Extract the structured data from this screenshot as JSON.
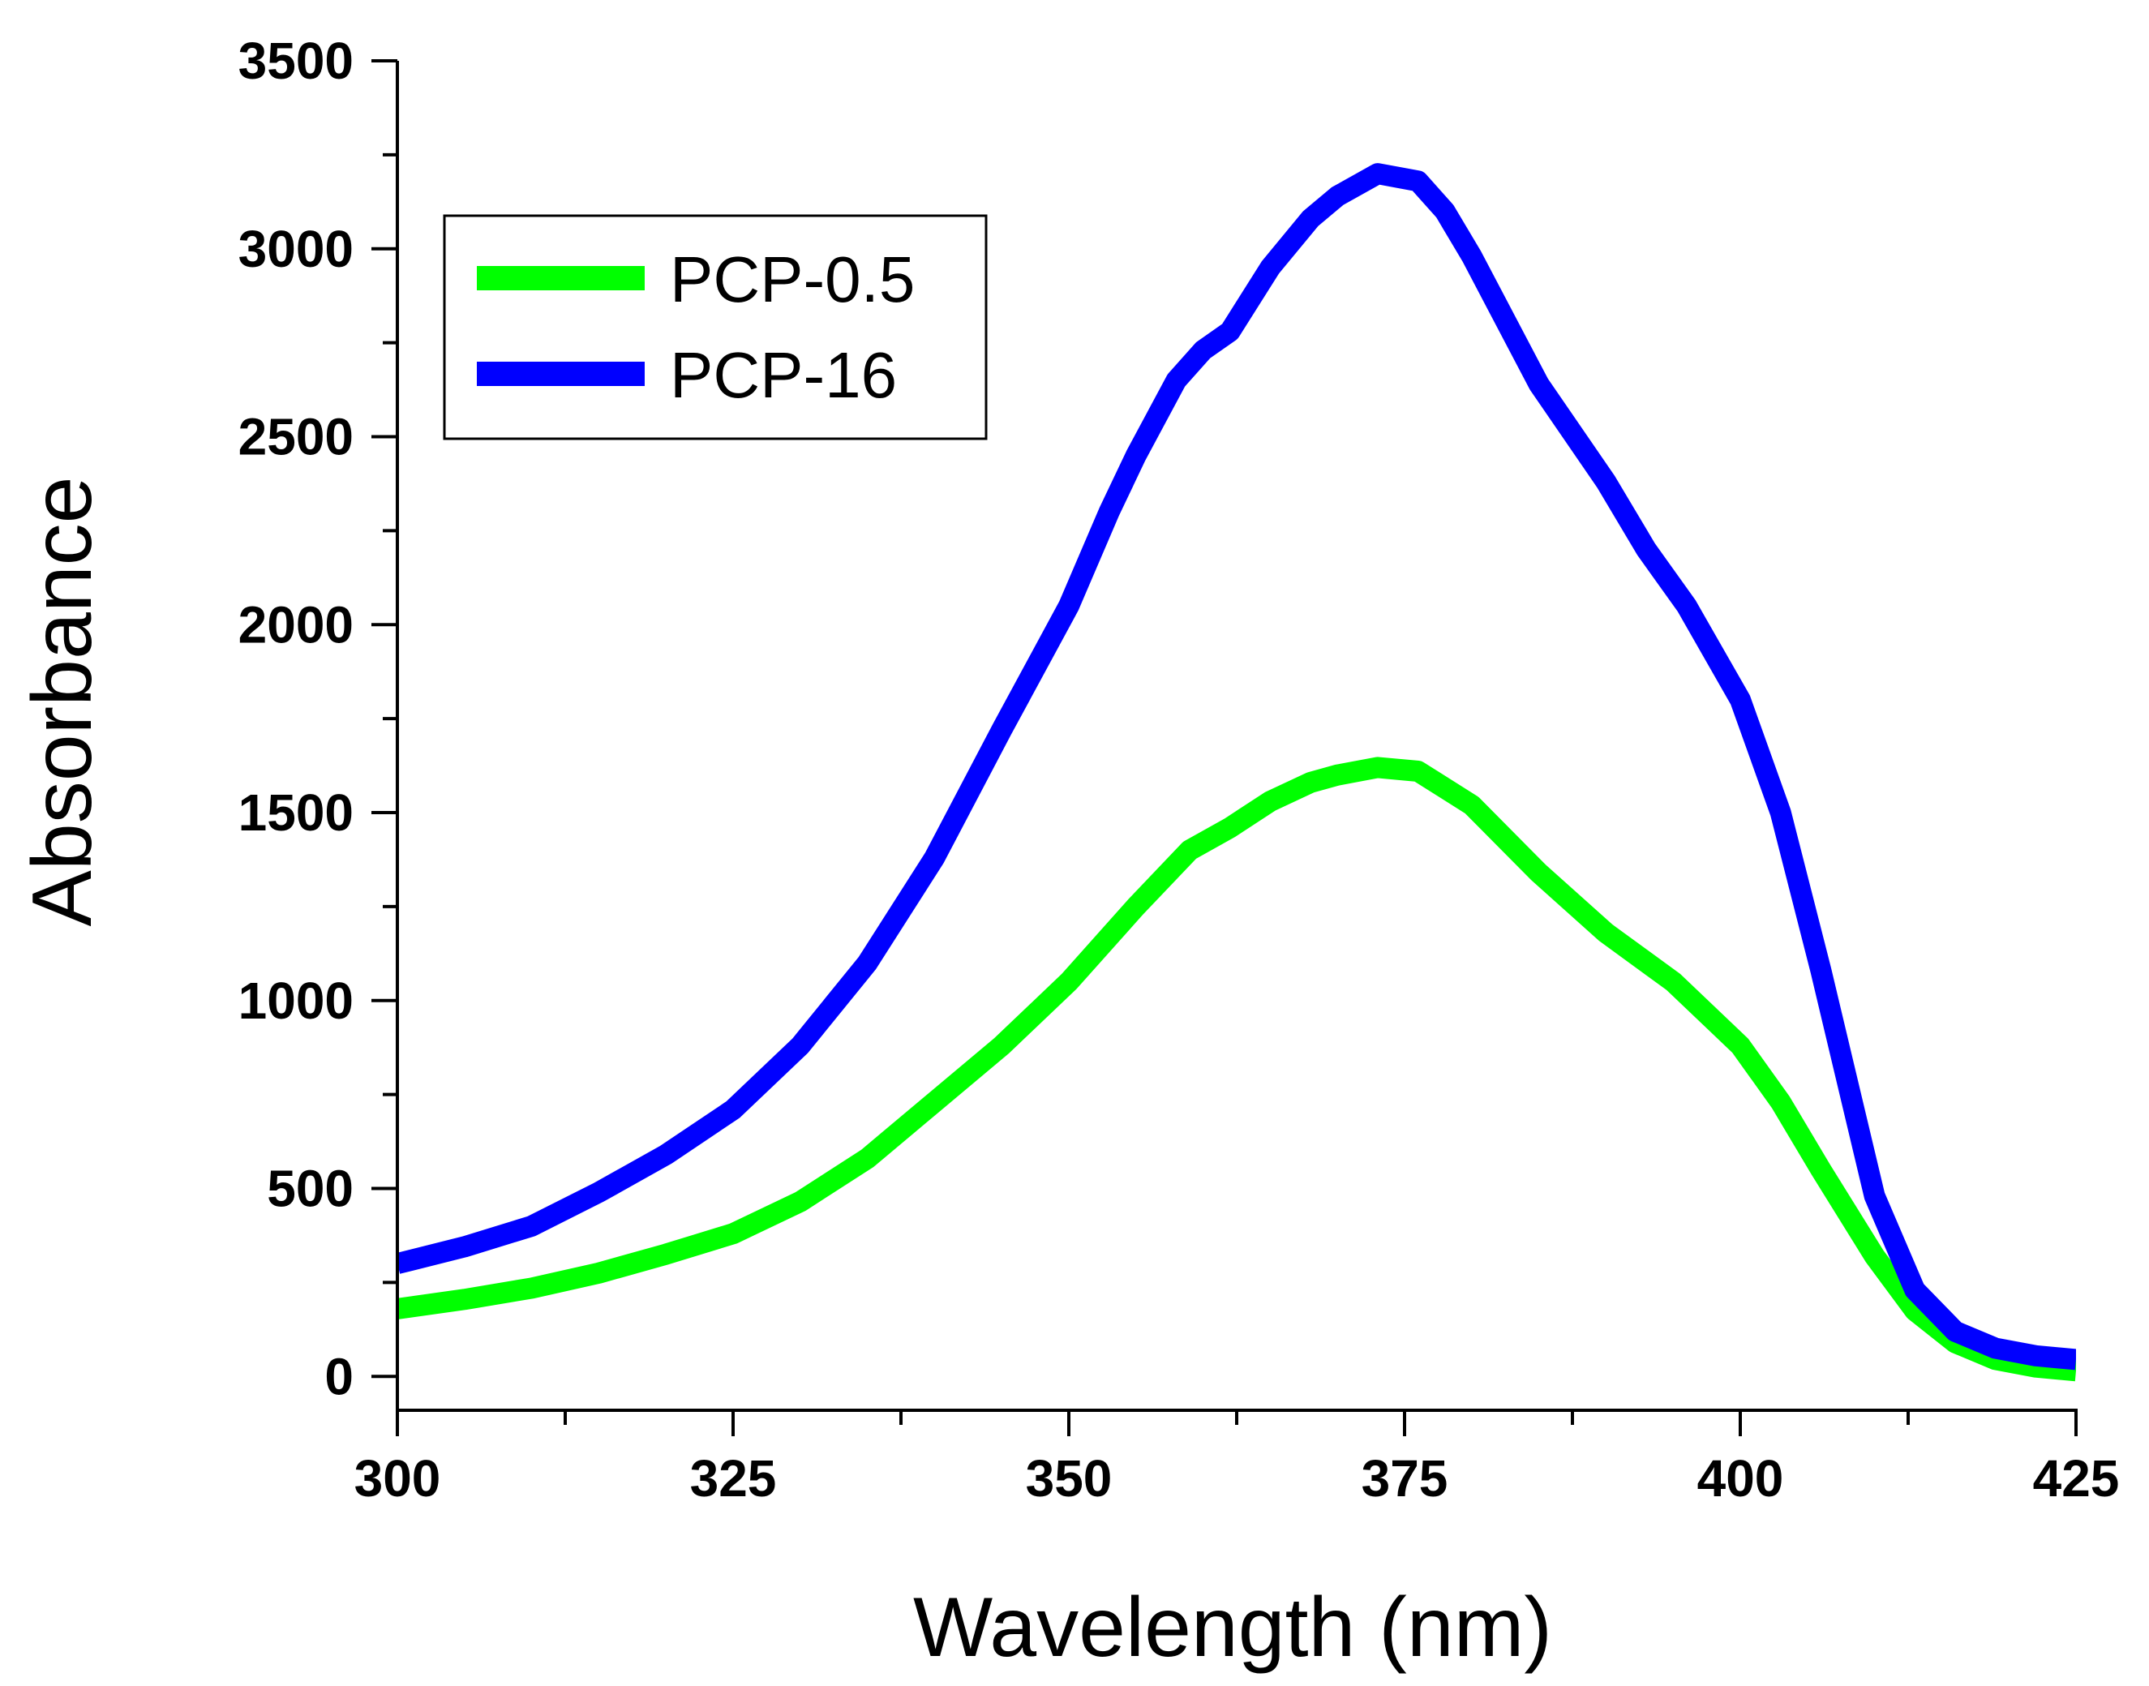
{
  "chart_data": {
    "type": "line",
    "title": "",
    "xlabel": "Wavelength (nm)",
    "ylabel": "Absorbance",
    "xlim": [
      300,
      425
    ],
    "ylim": [
      -90,
      3500
    ],
    "x_ticks": [
      300,
      325,
      350,
      375,
      400,
      425
    ],
    "x_tick_labels": [
      "300",
      "325",
      "350",
      "375",
      "400",
      "425"
    ],
    "x_minor_ticks": [
      312.5,
      337.5,
      362.5,
      387.5,
      412.5
    ],
    "y_ticks": [
      0,
      500,
      1000,
      1500,
      2000,
      2500,
      3000,
      3500
    ],
    "y_tick_labels": [
      "0",
      "500",
      "1000",
      "1500",
      "2000",
      "2500",
      "3000",
      "3500"
    ],
    "y_minor_ticks": [
      250,
      750,
      1250,
      1750,
      2250,
      2750,
      3250
    ],
    "grid": false,
    "legend_position": "top-left",
    "series": [
      {
        "name": "PCP-0.5",
        "color": "#00ff00",
        "x": [
          300,
          305,
          310,
          315,
          320,
          325,
          330,
          335,
          340,
          345,
          350,
          355,
          359,
          360,
          362,
          365,
          368,
          370,
          373,
          376,
          380,
          385,
          390,
          395,
          400,
          403,
          406,
          410,
          413,
          416,
          419,
          422,
          425
        ],
        "y": [
          180,
          205,
          235,
          275,
          325,
          380,
          465,
          580,
          730,
          880,
          1050,
          1250,
          1400,
          1420,
          1460,
          1530,
          1580,
          1600,
          1620,
          1610,
          1520,
          1340,
          1180,
          1050,
          880,
          730,
          550,
          320,
          175,
          90,
          45,
          25,
          15
        ]
      },
      {
        "name": "PCP-16",
        "color": "#0000ff",
        "x": [
          300,
          305,
          310,
          315,
          320,
          325,
          330,
          335,
          340,
          345,
          350,
          353,
          355,
          358,
          360,
          362,
          365,
          368,
          370,
          373,
          376,
          378,
          380,
          385,
          390,
          393,
          396,
          400,
          403,
          406,
          410,
          413,
          416,
          419,
          422,
          425
        ],
        "y": [
          300,
          345,
          400,
          490,
          590,
          710,
          880,
          1100,
          1380,
          1720,
          2050,
          2300,
          2450,
          2650,
          2730,
          2780,
          2950,
          3080,
          3140,
          3200,
          3180,
          3100,
          2980,
          2640,
          2380,
          2200,
          2050,
          1800,
          1500,
          1080,
          480,
          230,
          120,
          75,
          55,
          45
        ]
      }
    ]
  }
}
